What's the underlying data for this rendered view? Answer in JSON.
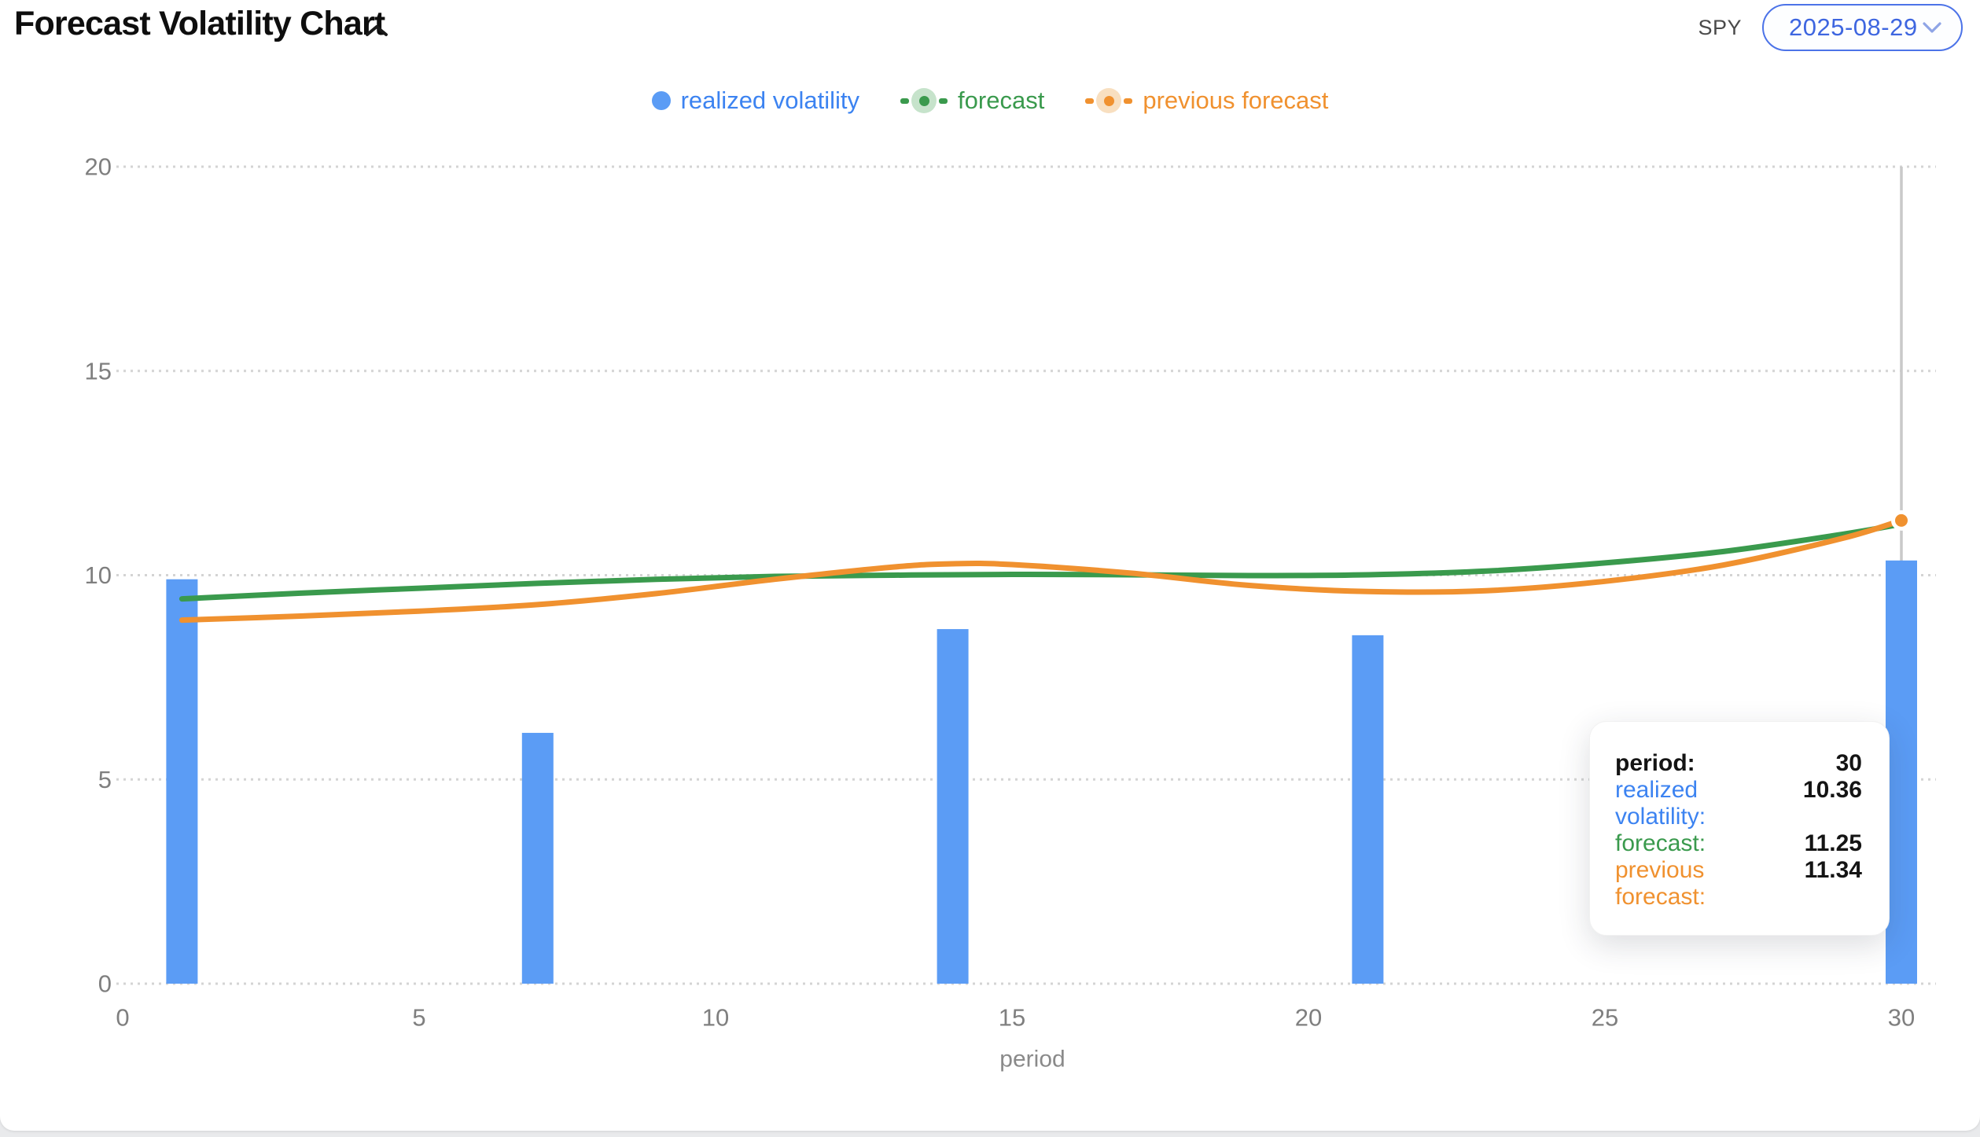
{
  "header": {
    "title": "Forecast Volatility Chart",
    "collapse_icon": "chevron-up",
    "symbol_label": "SPY",
    "date_selector": {
      "value": "2025-08-29",
      "icon": "chevron-down"
    }
  },
  "legend": {
    "items": [
      {
        "label": "realized volatility",
        "type": "bar",
        "color": "#3c83f1",
        "swatch": "#5b9cf5"
      },
      {
        "label": "forecast",
        "type": "line",
        "color": "#3a9a4d",
        "swatch": "#3a9a4d",
        "halo": "#c6e3cb"
      },
      {
        "label": "previous forecast",
        "type": "line",
        "color": "#f0912f",
        "swatch": "#f0912f",
        "halo": "#f8dfc0"
      }
    ]
  },
  "tooltip": {
    "rows": [
      {
        "label": "period:",
        "value": "30",
        "color": "#141414",
        "bold": true
      },
      {
        "label": "realized volatility:",
        "value": "10.36",
        "color": "#3c83f1"
      },
      {
        "label": "forecast:",
        "value": "11.25",
        "color": "#3a9a4d"
      },
      {
        "label": "previous forecast:",
        "value": "11.34",
        "color": "#f0912f"
      }
    ]
  },
  "chart_data": {
    "type": "bar+line",
    "xlabel": "period",
    "x_ticks": [
      0,
      5,
      10,
      15,
      20,
      25,
      30
    ],
    "y_ticks": [
      0,
      5,
      10,
      15,
      20
    ],
    "xlim": [
      0,
      30.6
    ],
    "ylim": [
      0,
      20
    ],
    "grid": "horizontal-dotted",
    "legend_position": "top-center",
    "bars": {
      "name": "realized volatility",
      "color": "#5b9cf5",
      "points": [
        [
          1,
          9.9
        ],
        [
          7,
          6.14
        ],
        [
          14,
          8.68
        ],
        [
          21,
          8.53
        ],
        [
          30,
          10.36
        ]
      ]
    },
    "series": [
      {
        "name": "forecast",
        "color": "#3a9a4d",
        "points": [
          [
            1,
            9.42
          ],
          [
            3,
            9.56
          ],
          [
            5,
            9.68
          ],
          [
            7,
            9.8
          ],
          [
            9,
            9.9
          ],
          [
            11,
            9.97
          ],
          [
            13,
            10.0
          ],
          [
            15,
            10.02
          ],
          [
            17,
            10.01
          ],
          [
            19,
            9.99
          ],
          [
            21,
            10.01
          ],
          [
            23,
            10.1
          ],
          [
            25,
            10.3
          ],
          [
            27,
            10.58
          ],
          [
            29,
            11.0
          ],
          [
            30,
            11.25
          ]
        ]
      },
      {
        "name": "previous forecast",
        "color": "#f0912f",
        "end_marker": true,
        "points": [
          [
            1,
            8.9
          ],
          [
            3,
            9.0
          ],
          [
            5,
            9.12
          ],
          [
            7,
            9.28
          ],
          [
            9,
            9.55
          ],
          [
            11,
            9.9
          ],
          [
            13,
            10.2
          ],
          [
            14,
            10.28
          ],
          [
            15,
            10.26
          ],
          [
            17,
            10.05
          ],
          [
            19,
            9.75
          ],
          [
            21,
            9.6
          ],
          [
            23,
            9.62
          ],
          [
            25,
            9.85
          ],
          [
            27,
            10.25
          ],
          [
            29,
            10.9
          ],
          [
            30,
            11.34
          ]
        ]
      }
    ],
    "crosshair_x": 30,
    "hover_point": {
      "series": "previous forecast",
      "x": 30,
      "y": 11.34
    }
  },
  "theme": {
    "bar_blue": "#5b9cf5",
    "text_blue": "#3c83f1",
    "green": "#3a9a4d",
    "orange": "#f0912f",
    "gridline": "#d4d4d4",
    "tick_text": "#7f7f7f",
    "axis_label_text": "#8a8a8a",
    "crosshair": "#c9c9c9",
    "pill_border": "#4c73e8",
    "pill_text": "#3e66e0",
    "pill_chevron": "#8fa5e6",
    "title_text": "#0e0e0e"
  }
}
